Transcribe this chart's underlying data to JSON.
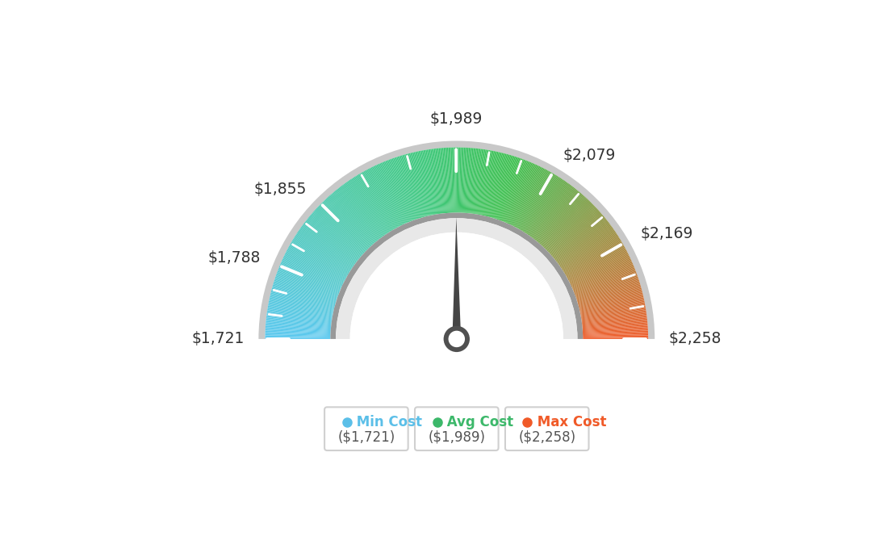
{
  "min_val": 1721,
  "max_val": 2258,
  "avg_val": 1989,
  "labels": {
    "min": "$1,721",
    "l2": "$1,788",
    "l3": "$1,855",
    "top": "$1,989",
    "r3": "$2,079",
    "r2": "$2,169",
    "max": "$2,258"
  },
  "legend": [
    {
      "label": "Min Cost",
      "value": "($1,721)",
      "dot_color": "#5bbfe8"
    },
    {
      "label": "Avg Cost",
      "value": "($1,989)",
      "dot_color": "#3cb86a"
    },
    {
      "label": "Max Cost",
      "value": "($2,258)",
      "dot_color": "#f05a28"
    }
  ],
  "background_color": "#ffffff",
  "needle_color": "#454545",
  "colors": {
    "blue": "#5bc8f0",
    "green": "#3ec87a",
    "orange": "#f06030",
    "outer_ring": "#cccccc",
    "inner_ring_dark": "#888888",
    "inner_ring_light": "#e0e0e0"
  }
}
